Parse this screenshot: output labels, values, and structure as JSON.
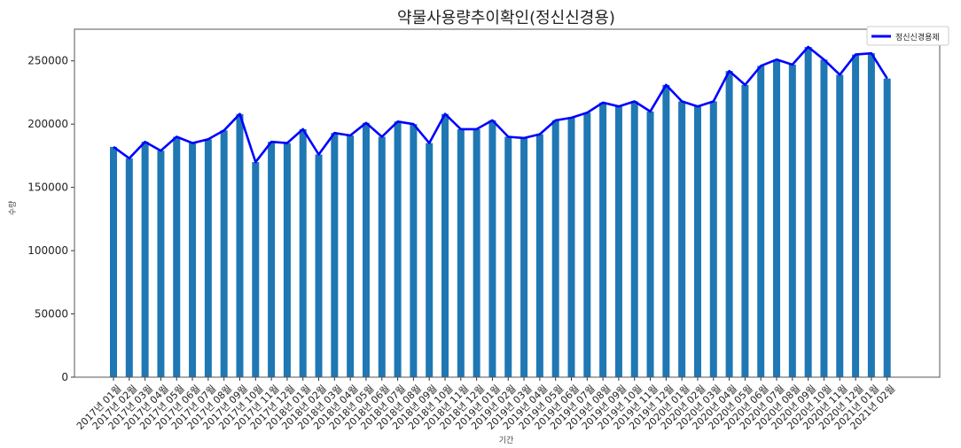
{
  "chart_data": {
    "type": "bar",
    "title": "약물사용량추이확인(정신신경용)",
    "xlabel": "기간",
    "ylabel": "수량",
    "ylim": [
      0,
      275000
    ],
    "yticks": [
      0,
      50000,
      100000,
      150000,
      200000,
      250000
    ],
    "ytick_labels": [
      "0",
      "50000",
      "100000",
      "150000",
      "200000",
      "250000"
    ],
    "grid": false,
    "legend_position": "top-right",
    "colors": {
      "bar": "#1f77b4",
      "line": "#0000ff"
    },
    "categories": [
      "2017년 01월",
      "2017년 02월",
      "2017년 03월",
      "2017년 04월",
      "2017년 05월",
      "2017년 06월",
      "2017년 07월",
      "2017년 08월",
      "2017년 09월",
      "2017년 10월",
      "2017년 11월",
      "2017년 12월",
      "2018년 01월",
      "2018년 02월",
      "2018년 03월",
      "2018년 04월",
      "2018년 05월",
      "2018년 06월",
      "2018년 07월",
      "2018년 08월",
      "2018년 09월",
      "2018년 10월",
      "2018년 11월",
      "2018년 12월",
      "2019년 01월",
      "2019년 02월",
      "2019년 03월",
      "2019년 04월",
      "2019년 05월",
      "2019년 06월",
      "2019년 07월",
      "2019년 08월",
      "2019년 09월",
      "2019년 10월",
      "2019년 11월",
      "2019년 12월",
      "2020년 01월",
      "2020년 02월",
      "2020년 03월",
      "2020년 04월",
      "2020년 05월",
      "2020년 06월",
      "2020년 07월",
      "2020년 08월",
      "2020년 09월",
      "2020년 10월",
      "2020년 11월",
      "2020년 12월",
      "2021년 01월",
      "2021년 02월"
    ],
    "series": [
      {
        "name": "정신신경용제",
        "type": "line+bar",
        "values": [
          182000,
          173000,
          186000,
          179000,
          190000,
          185000,
          188000,
          195000,
          208000,
          170000,
          186000,
          185000,
          196000,
          176000,
          193000,
          191000,
          201000,
          190000,
          202000,
          200000,
          185000,
          208000,
          196000,
          196000,
          203000,
          190000,
          189000,
          192000,
          203000,
          205000,
          209000,
          217000,
          214000,
          218000,
          210000,
          231000,
          218000,
          214000,
          218000,
          242000,
          231000,
          246000,
          251000,
          247000,
          261000,
          251000,
          239000,
          255000,
          256000,
          236000
        ]
      }
    ]
  }
}
